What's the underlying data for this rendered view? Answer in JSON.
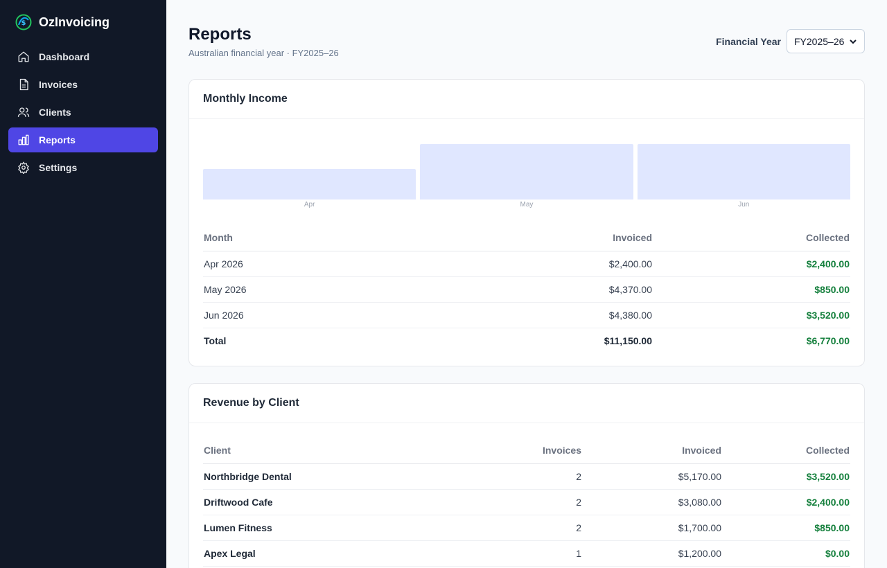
{
  "app": {
    "name": "OzInvoicing"
  },
  "sidebar": {
    "items": [
      {
        "label": "Dashboard",
        "icon": "home-icon"
      },
      {
        "label": "Invoices",
        "icon": "document-icon"
      },
      {
        "label": "Clients",
        "icon": "users-icon"
      },
      {
        "label": "Reports",
        "icon": "bar-chart-icon",
        "active": true
      },
      {
        "label": "Settings",
        "icon": "gear-icon"
      }
    ]
  },
  "header": {
    "title": "Reports",
    "subtitle": "Australian financial year · FY2025–26",
    "fy_label": "Financial Year",
    "fy_selected": "FY2025–26"
  },
  "monthly": {
    "title": "Monthly Income",
    "columns": [
      "Month",
      "Invoiced",
      "Collected"
    ],
    "rows": [
      [
        "Apr 2026",
        "$2,400.00",
        "$2,400.00"
      ],
      [
        "May 2026",
        "$4,370.00",
        "$850.00"
      ],
      [
        "Jun 2026",
        "$4,380.00",
        "$3,520.00"
      ]
    ],
    "total": [
      "Total",
      "$11,150.00",
      "$6,770.00"
    ]
  },
  "chart_data": {
    "type": "bar",
    "categories": [
      "Apr",
      "May",
      "Jun"
    ],
    "values": [
      2400,
      4370,
      4380
    ],
    "title": "",
    "xlabel": "",
    "ylabel": "",
    "ylim": [
      0,
      4380
    ],
    "grid": false,
    "color": "#e0e7ff"
  },
  "clients": {
    "title": "Revenue by Client",
    "columns": [
      "Client",
      "Invoices",
      "Invoiced",
      "Collected"
    ],
    "rows": [
      [
        "Northbridge Dental",
        "2",
        "$5,170.00",
        "$3,520.00"
      ],
      [
        "Driftwood Cafe",
        "2",
        "$3,080.00",
        "$2,400.00"
      ],
      [
        "Lumen Fitness",
        "2",
        "$1,700.00",
        "$850.00"
      ],
      [
        "Apex Legal",
        "1",
        "$1,200.00",
        "$0.00"
      ]
    ]
  },
  "colors": {
    "sidebar": "#111827",
    "accent": "#4f46e5",
    "collected": "#15803d"
  }
}
